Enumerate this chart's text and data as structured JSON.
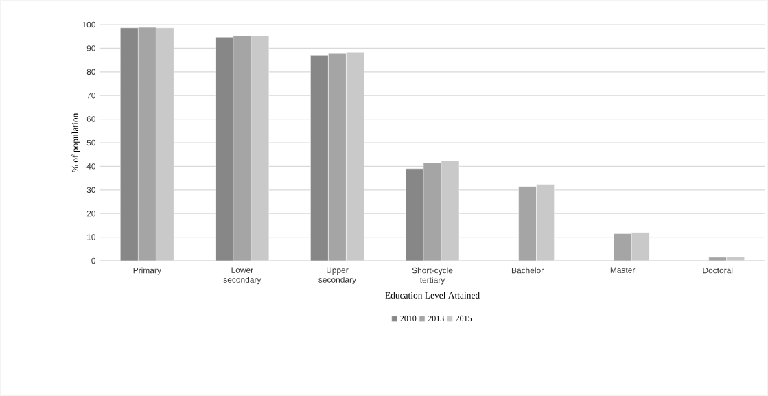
{
  "chart_data": {
    "type": "bar",
    "xlabel": "Education Level Attained",
    "ylabel": "% of population",
    "categories": [
      "Primary",
      "Lower secondary",
      "Upper secondary",
      "Short-cycle tertiary",
      "Bachelor",
      "Master",
      "Doctoral"
    ],
    "series": [
      {
        "name": "2010",
        "color": "#878787",
        "values": [
          98.6,
          94.7,
          87.1,
          39.0,
          null,
          null,
          null
        ]
      },
      {
        "name": "2013",
        "color": "#a5a5a5",
        "values": [
          98.8,
          95.2,
          88.0,
          41.5,
          31.5,
          11.5,
          1.5
        ]
      },
      {
        "name": "2015",
        "color": "#c9c9c9",
        "values": [
          98.6,
          95.3,
          88.3,
          42.3,
          32.4,
          12.0,
          1.7
        ]
      }
    ],
    "ylim": [
      0,
      100
    ],
    "yticks": [
      0,
      10,
      20,
      30,
      40,
      50,
      60,
      70,
      80,
      90,
      100
    ],
    "grid": "y",
    "legend": "bottom"
  }
}
